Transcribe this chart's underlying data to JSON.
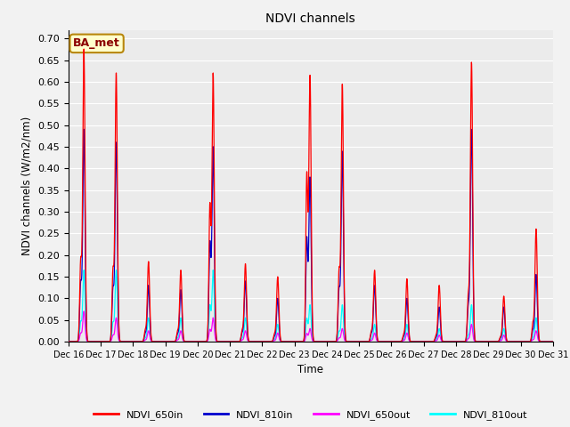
{
  "title": "NDVI channels",
  "ylabel": "NDVI channels (W/m2/nm)",
  "xlabel": "Time",
  "annotation": "BA_met",
  "ylim": [
    0.0,
    0.72
  ],
  "yticks": [
    0.0,
    0.05,
    0.1,
    0.15,
    0.2,
    0.25,
    0.3,
    0.35,
    0.4,
    0.45,
    0.5,
    0.55,
    0.6,
    0.65,
    0.7
  ],
  "colors": {
    "NDVI_650in": "#ff0000",
    "NDVI_810in": "#0000cd",
    "NDVI_650out": "#ff00ff",
    "NDVI_810out": "#00ffff"
  },
  "axes_bg": "#ebebeb",
  "grid_color": "#ffffff",
  "n_days": 15,
  "start_day": 16,
  "peak_heights_650in": [
    0.675,
    0.62,
    0.185,
    0.165,
    0.62,
    0.18,
    0.15,
    0.615,
    0.595,
    0.165,
    0.145,
    0.13,
    0.645,
    0.105,
    0.26
  ],
  "peak_heights_810in": [
    0.49,
    0.46,
    0.13,
    0.12,
    0.45,
    0.14,
    0.1,
    0.38,
    0.44,
    0.13,
    0.1,
    0.08,
    0.49,
    0.08,
    0.155
  ],
  "peak_heights_650out": [
    0.07,
    0.055,
    0.025,
    0.025,
    0.055,
    0.025,
    0.02,
    0.03,
    0.03,
    0.02,
    0.02,
    0.015,
    0.04,
    0.015,
    0.025
  ],
  "peak_heights_810out": [
    0.165,
    0.165,
    0.055,
    0.055,
    0.165,
    0.055,
    0.04,
    0.085,
    0.085,
    0.04,
    0.04,
    0.03,
    0.085,
    0.03,
    0.055
  ],
  "secondary_frac_650in": [
    0.27,
    0.26,
    0.14,
    0.14,
    0.5,
    0.14,
    0.11,
    0.62,
    0.27,
    0.14,
    0.11,
    0.1,
    0.16,
    0.1,
    0.16
  ],
  "secondary_frac_810in": [
    0.27,
    0.26,
    0.14,
    0.14,
    0.5,
    0.14,
    0.11,
    0.62,
    0.27,
    0.14,
    0.11,
    0.1,
    0.16,
    0.1,
    0.16
  ],
  "secondary_frac_650out": [
    0.27,
    0.26,
    0.14,
    0.14,
    0.5,
    0.14,
    0.11,
    0.62,
    0.27,
    0.14,
    0.11,
    0.1,
    0.16,
    0.1,
    0.16
  ],
  "secondary_frac_810out": [
    0.27,
    0.26,
    0.14,
    0.14,
    0.5,
    0.14,
    0.11,
    0.62,
    0.27,
    0.14,
    0.11,
    0.1,
    0.16,
    0.1,
    0.16
  ]
}
